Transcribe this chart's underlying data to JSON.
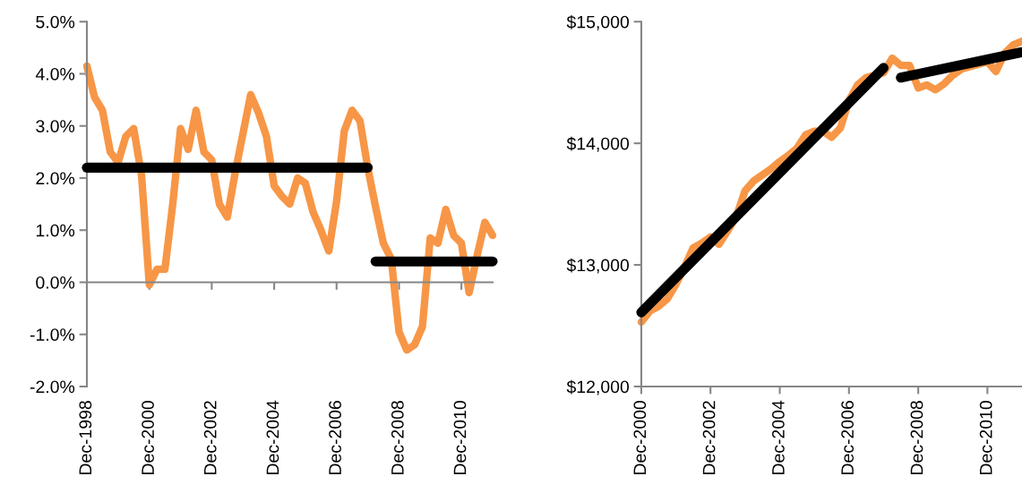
{
  "chart_data": [
    {
      "type": "line",
      "xlim": [
        "1998-12",
        "2011-12"
      ],
      "ylim": [
        -2,
        5
      ],
      "xticks": [
        {
          "value": "1998-12",
          "label": "Dec-1998"
        },
        {
          "value": "2000-12",
          "label": "Dec-2000"
        },
        {
          "value": "2002-12",
          "label": "Dec-2002"
        },
        {
          "value": "2004-12",
          "label": "Dec-2004"
        },
        {
          "value": "2006-12",
          "label": "Dec-2006"
        },
        {
          "value": "2008-12",
          "label": "Dec-2008"
        },
        {
          "value": "2010-12",
          "label": "Dec-2010"
        }
      ],
      "yticks": [
        {
          "value": -2,
          "label": "-2.0%"
        },
        {
          "value": -1,
          "label": "-1.0%"
        },
        {
          "value": 0,
          "label": "0.0%"
        },
        {
          "value": 1,
          "label": "1.0%"
        },
        {
          "value": 2,
          "label": "2.0%"
        },
        {
          "value": 3,
          "label": "3.0%"
        },
        {
          "value": 4,
          "label": "4.0%"
        },
        {
          "value": 5,
          "label": "5.0%"
        }
      ],
      "series": [
        {
          "color": "#f79646",
          "x": [
            "1998-12",
            "1999-03",
            "1999-06",
            "1999-09",
            "1999-12",
            "2000-03",
            "2000-06",
            "2000-09",
            "2000-12",
            "2001-03",
            "2001-06",
            "2001-09",
            "2001-12",
            "2002-03",
            "2002-06",
            "2002-09",
            "2002-12",
            "2003-03",
            "2003-06",
            "2003-09",
            "2003-12",
            "2004-03",
            "2004-06",
            "2004-09",
            "2004-12",
            "2005-03",
            "2005-06",
            "2005-09",
            "2005-12",
            "2006-03",
            "2006-06",
            "2006-09",
            "2006-12",
            "2007-03",
            "2007-06",
            "2007-09",
            "2007-12",
            "2008-03",
            "2008-06",
            "2008-09",
            "2008-12",
            "2009-03",
            "2009-06",
            "2009-09",
            "2009-12",
            "2010-03",
            "2010-06",
            "2010-09",
            "2010-12",
            "2011-03",
            "2011-06",
            "2011-09",
            "2011-12"
          ],
          "values": [
            4.15,
            3.55,
            3.3,
            2.5,
            2.3,
            2.8,
            2.95,
            2.05,
            -0.05,
            0.25,
            0.25,
            1.5,
            2.95,
            2.55,
            3.3,
            2.5,
            2.35,
            1.5,
            1.25,
            2.1,
            2.85,
            3.6,
            3.25,
            2.8,
            1.85,
            1.65,
            1.5,
            2.0,
            1.9,
            1.35,
            1.0,
            0.6,
            1.55,
            2.9,
            3.3,
            3.1,
            2.2,
            1.45,
            0.75,
            0.45,
            -0.95,
            -1.3,
            -1.2,
            -0.85,
            0.85,
            0.75,
            1.4,
            0.9,
            0.75,
            -0.2,
            0.5,
            1.15,
            0.9
          ]
        },
        {
          "type": "line",
          "color": "#000000",
          "x": [
            "1998-12",
            "2007-12"
          ],
          "values": [
            2.2,
            2.2
          ]
        },
        {
          "type": "line",
          "color": "#000000",
          "x": [
            "2008-03",
            "2011-12"
          ],
          "values": [
            0.4,
            0.4
          ]
        }
      ]
    },
    {
      "type": "line",
      "xlim": [
        "2000-12",
        "2011-12"
      ],
      "ylim": [
        12000,
        15000
      ],
      "xticks": [
        {
          "value": "2000-12",
          "label": "Dec-2000"
        },
        {
          "value": "2002-12",
          "label": "Dec-2002"
        },
        {
          "value": "2004-12",
          "label": "Dec-2004"
        },
        {
          "value": "2006-12",
          "label": "Dec-2006"
        },
        {
          "value": "2008-12",
          "label": "Dec-2008"
        },
        {
          "value": "2010-12",
          "label": "Dec-2010"
        }
      ],
      "yticks": [
        {
          "value": 12000,
          "label": "$12,000"
        },
        {
          "value": 13000,
          "label": "$13,000"
        },
        {
          "value": 14000,
          "label": "$14,000"
        },
        {
          "value": 15000,
          "label": "$15,000"
        }
      ],
      "series": [
        {
          "color": "#f79646",
          "x": [
            "2000-12",
            "2001-03",
            "2001-06",
            "2001-09",
            "2001-12",
            "2002-03",
            "2002-06",
            "2002-09",
            "2002-12",
            "2003-03",
            "2003-06",
            "2003-09",
            "2003-12",
            "2004-03",
            "2004-06",
            "2004-09",
            "2004-12",
            "2005-03",
            "2005-06",
            "2005-09",
            "2005-12",
            "2006-03",
            "2006-06",
            "2006-09",
            "2006-12",
            "2007-03",
            "2007-06",
            "2007-09",
            "2007-12",
            "2008-03",
            "2008-06",
            "2008-09",
            "2008-12",
            "2009-03",
            "2009-06",
            "2009-09",
            "2009-12",
            "2010-03",
            "2010-06",
            "2010-09",
            "2010-12",
            "2011-03",
            "2011-06",
            "2011-09",
            "2011-12"
          ],
          "values": [
            12530,
            12620,
            12660,
            12720,
            12840,
            12980,
            13140,
            13180,
            13230,
            13170,
            13280,
            13400,
            13610,
            13690,
            13740,
            13790,
            13850,
            13900,
            13960,
            14070,
            14100,
            14100,
            14050,
            14125,
            14350,
            14480,
            14540,
            14560,
            14580,
            14700,
            14640,
            14640,
            14455,
            14480,
            14440,
            14490,
            14560,
            14610,
            14630,
            14650,
            14670,
            14590,
            14740,
            14810,
            14840
          ]
        },
        {
          "type": "line",
          "color": "#000000",
          "x": [
            "2000-12",
            "2007-12"
          ],
          "values": [
            12610,
            14620
          ]
        },
        {
          "type": "line",
          "color": "#000000",
          "x": [
            "2008-06",
            "2011-12"
          ],
          "values": [
            14540,
            14750
          ]
        }
      ]
    }
  ]
}
